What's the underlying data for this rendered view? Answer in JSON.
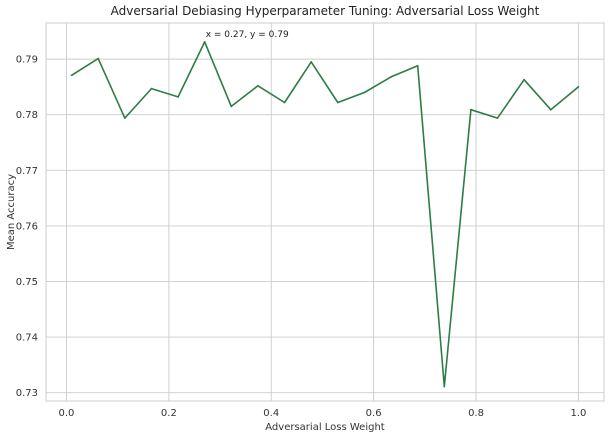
{
  "chart_data": {
    "type": "line",
    "title": "Adversarial Debiasing Hyperparameter Tuning: Adversarial Loss Weight",
    "xlabel": "Adversarial Loss Weight",
    "ylabel": "Mean Accuracy",
    "xlim": [
      -0.04,
      1.05
    ],
    "ylim": [
      0.7285,
      0.7965
    ],
    "xticks": [
      0.0,
      0.2,
      0.4,
      0.6,
      0.8,
      1.0
    ],
    "xtick_labels": [
      "0.0",
      "0.2",
      "0.4",
      "0.6",
      "0.8",
      "1.0"
    ],
    "yticks": [
      0.73,
      0.74,
      0.75,
      0.76,
      0.77,
      0.78,
      0.79
    ],
    "ytick_labels": [
      "0.73",
      "0.74",
      "0.75",
      "0.76",
      "0.77",
      "0.78",
      "0.79"
    ],
    "grid": true,
    "line_color": "#2e7d46",
    "series": [
      {
        "x": [
          0.01,
          0.062,
          0.114,
          0.166,
          0.218,
          0.27,
          0.322,
          0.374,
          0.426,
          0.478,
          0.53,
          0.582,
          0.634,
          0.686,
          0.738,
          0.79,
          0.842,
          0.894,
          0.946,
          1.0
        ],
        "values": [
          0.7871,
          0.7901,
          0.7794,
          0.7847,
          0.7832,
          0.7931,
          0.7815,
          0.7852,
          0.7822,
          0.7895,
          0.7822,
          0.784,
          0.7868,
          0.7888,
          0.7311,
          0.7809,
          0.7794,
          0.7863,
          0.7809,
          0.785
        ]
      }
    ],
    "annotation": {
      "text": "x = 0.27, y = 0.79",
      "x": 0.27,
      "y": 0.7931
    }
  }
}
